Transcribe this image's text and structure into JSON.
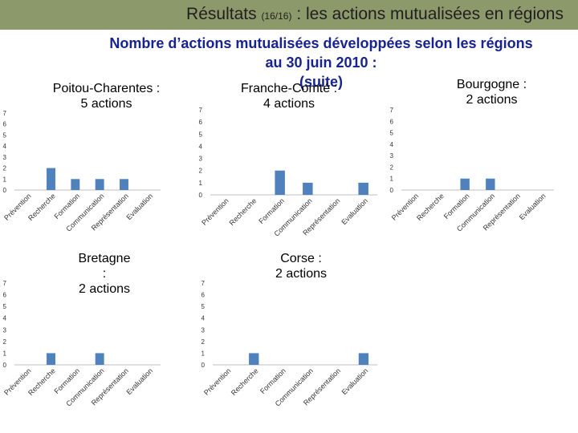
{
  "header": {
    "title_main": "Résultats",
    "title_pages": "(16/16)",
    "title_rest": ": les actions mutualisées en régions",
    "subtitle_line1": "Nombre d’actions mutualisées développées selon les régions",
    "subtitle_line2": "au 30 juin 2010 :",
    "subtitle_line3": "(suite)"
  },
  "colors": {
    "bar": "#4f81bd",
    "header_bar": "#8c9a6b",
    "title_blue": "#17238e",
    "axis": "#bfbfbf"
  },
  "chart_data": [
    {
      "type": "bar",
      "title_line1": "Poitou-Charentes :",
      "title_line2": "5 actions",
      "categories": [
        "Prévention",
        "Recherche",
        "Formation",
        "Communication",
        "Représentation",
        "Evaluation"
      ],
      "values": [
        0,
        2,
        1,
        1,
        1,
        0
      ],
      "ylim": [
        0,
        7
      ],
      "yticks": [
        0,
        1,
        2,
        3,
        4,
        5,
        6,
        7
      ]
    },
    {
      "type": "bar",
      "title_line1": "Franche-Comté :",
      "title_line2": "4 actions",
      "categories": [
        "Prévention",
        "Recherche",
        "Formation",
        "Communication",
        "Représentation",
        "Evaluation"
      ],
      "values": [
        0,
        0,
        2,
        1,
        0,
        1
      ],
      "ylim": [
        0,
        7
      ],
      "yticks": [
        0,
        1,
        2,
        3,
        4,
        5,
        6,
        7
      ]
    },
    {
      "type": "bar",
      "title_line1": "Bourgogne :",
      "title_line2": "2 actions",
      "categories": [
        "Prévention",
        "Recherche",
        "Formation",
        "Communication",
        "Représentation",
        "Evaluation"
      ],
      "values": [
        0,
        0,
        1,
        1,
        0,
        0
      ],
      "ylim": [
        0,
        7
      ],
      "yticks": [
        0,
        1,
        2,
        3,
        4,
        5,
        6,
        7
      ]
    },
    {
      "type": "bar",
      "title_line1": "Bretagne",
      "title_line2": ":",
      "title_line3": "2 actions",
      "categories": [
        "Prévention",
        "Recherche",
        "Formation",
        "Communication",
        "Représentation",
        "Evaluation"
      ],
      "values": [
        0,
        1,
        0,
        1,
        0,
        0
      ],
      "ylim": [
        0,
        7
      ],
      "yticks": [
        0,
        1,
        2,
        3,
        4,
        5,
        6,
        7
      ]
    },
    {
      "type": "bar",
      "title_line1": "Corse :",
      "title_line2": "2 actions",
      "categories": [
        "Prévention",
        "Recherche",
        "Formation",
        "Communication",
        "Représentation",
        "Evaluation"
      ],
      "values": [
        0,
        1,
        0,
        0,
        0,
        1
      ],
      "ylim": [
        0,
        7
      ],
      "yticks": [
        0,
        1,
        2,
        3,
        4,
        5,
        6,
        7
      ]
    }
  ]
}
